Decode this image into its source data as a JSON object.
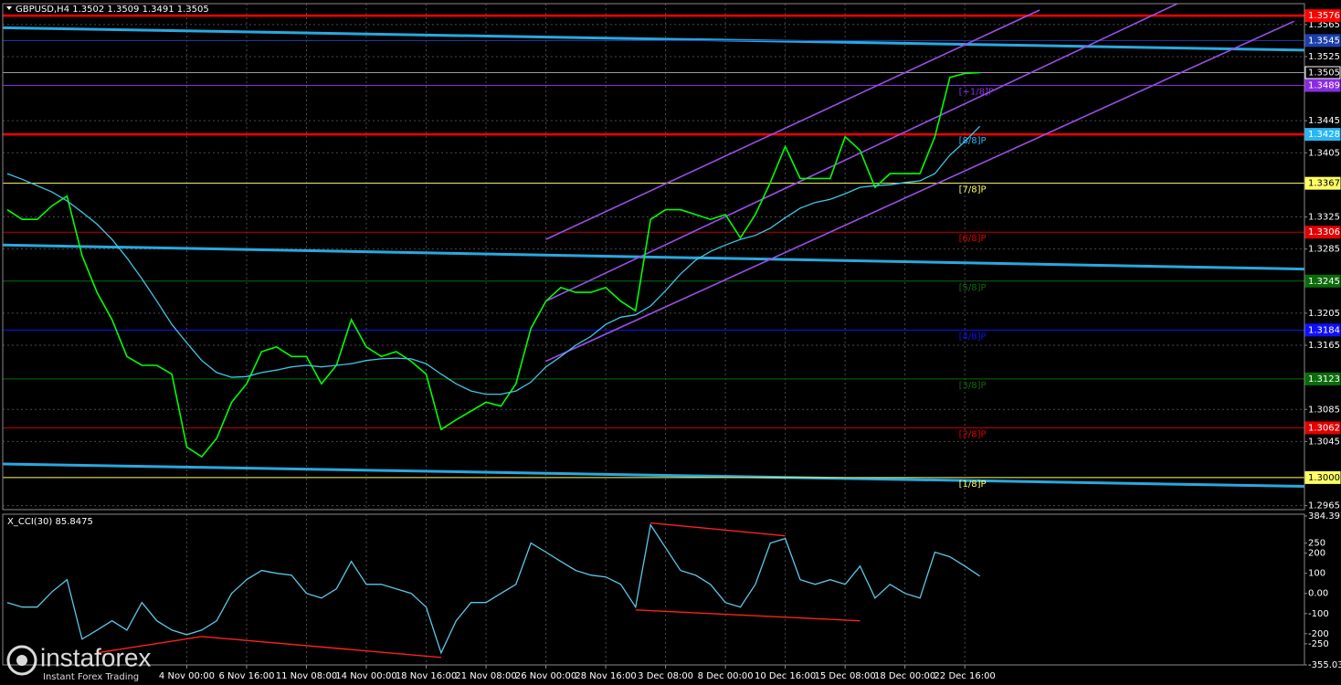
{
  "chart_data": [
    {
      "type": "line",
      "title": "GBPUSD,H4  1.3502 1.3509 1.3491 1.3505",
      "categories": [
        null,
        null,
        null,
        null,
        null,
        null,
        null,
        null,
        null,
        null,
        null,
        null,
        "4 Nov 00:00",
        null,
        null,
        null,
        "6 Nov 16:00",
        null,
        null,
        null,
        "11 Nov 08:00",
        null,
        null,
        null,
        "14 Nov 00:00",
        null,
        null,
        null,
        "18 Nov 16:00",
        null,
        null,
        null,
        "21 Nov 08:00",
        null,
        null,
        null,
        "26 Nov 00:00",
        null,
        null,
        null,
        "28 Nov 16:00",
        null,
        null,
        null,
        "3 Dec 08:00",
        null,
        null,
        null,
        "8 Dec 00:00",
        null,
        null,
        null,
        "10 Dec 16:00",
        null,
        null,
        null,
        "15 Dec 08:00",
        null,
        null,
        null,
        "18 Dec 00:00",
        null,
        null,
        null,
        "22 Dec 16:00",
        null
      ],
      "series": [
        {
          "color": "#00ff00",
          "values": [
            1.3334,
            1.3322,
            1.3322,
            1.3339,
            1.3351,
            1.3277,
            1.3231,
            1.3197,
            1.3151,
            1.314,
            1.314,
            1.3129,
            1.3038,
            1.3026,
            1.3049,
            1.3094,
            1.3117,
            1.3157,
            1.3163,
            1.3151,
            1.3151,
            1.3117,
            1.314,
            1.3197,
            1.3163,
            1.3151,
            1.3157,
            1.3145,
            1.3129,
            1.306,
            1.3072,
            1.3083,
            1.3094,
            1.3089,
            1.3117,
            1.3186,
            1.322,
            1.3237,
            1.3231,
            1.3231,
            1.3237,
            1.322,
            1.3208,
            1.3322,
            1.3334,
            1.3334,
            1.3328,
            1.3322,
            1.3328,
            1.3299,
            1.3328,
            1.3368,
            1.3413,
            1.3373,
            1.3373,
            1.3373,
            1.3425,
            1.3408,
            1.3362,
            1.3379,
            1.3379,
            1.3379,
            1.3425,
            1.3499,
            1.3504,
            1.3505
          ]
        },
        {
          "color": "#3fc6e8",
          "values": [
            1.3379,
            1.3372,
            1.3364,
            1.3356,
            1.3345,
            1.3331,
            1.3316,
            1.3297,
            1.3274,
            1.3248,
            1.322,
            1.3191,
            1.3168,
            1.3146,
            1.3131,
            1.3125,
            1.3126,
            1.3131,
            1.3134,
            1.3138,
            1.314,
            1.3138,
            1.314,
            1.3142,
            1.3146,
            1.3148,
            1.3149,
            1.3148,
            1.3142,
            1.3129,
            1.3117,
            1.3108,
            1.3104,
            1.3104,
            1.3108,
            1.3119,
            1.3138,
            1.3151,
            1.3165,
            1.3176,
            1.3191,
            1.32,
            1.3203,
            1.3214,
            1.3233,
            1.3254,
            1.3271,
            1.3282,
            1.329,
            1.3297,
            1.3302,
            1.3311,
            1.3324,
            1.3336,
            1.3343,
            1.3347,
            1.3354,
            1.3362,
            1.3364,
            1.3365,
            1.3368,
            1.337,
            1.3379,
            1.3402,
            1.3419,
            1.3438
          ]
        }
      ],
      "ylim": [
        1.296,
        1.3591
      ],
      "yticks": [
        1.3565,
        1.3525,
        1.3445,
        1.3405,
        1.3325,
        1.3285,
        1.3205,
        1.3165,
        1.3085,
        1.3045,
        1.2965
      ],
      "grid": true,
      "trend_lines": [
        {
          "color": "#29a8e0",
          "start": 1.3561,
          "end": 1.3533
        },
        {
          "color": "#29a8e0",
          "start": 1.329,
          "end": 1.326
        },
        {
          "color": "#29a8e0",
          "start": 1.3017,
          "end": 1.2989
        }
      ],
      "channel_lines": [
        {
          "color": "#9a4fe6",
          "from": [
            36,
            1.3297
          ],
          "to": [
            69,
            1.3583
          ]
        },
        {
          "color": "#9a4fe6",
          "from": [
            36,
            1.322
          ],
          "to": [
            79,
            1.3598
          ]
        },
        {
          "color": "#9a4fe6",
          "from": [
            36,
            1.3145
          ],
          "to": [
            86,
            1.3569
          ]
        }
      ],
      "levels": [
        {
          "price": 1.3576,
          "color": "#ff0000",
          "text_color": "#ffffff",
          "line_color": "#ff0000",
          "thick": true
        },
        {
          "price": 1.3545,
          "color": "#1c3faa",
          "text_color": "#ffffff",
          "line_color": "#1c3faa",
          "thick": false
        },
        {
          "price": 1.3505,
          "color": "#000000",
          "text_color": "#ffffff",
          "line_color": "#9a9a9a",
          "thick": false
        },
        {
          "price": 1.3489,
          "color": "#8a2be2",
          "text_color": "#ffffff",
          "line_color": "#8a2be2",
          "thick": false,
          "tag": "[+1/8]P"
        },
        {
          "price": 1.3428,
          "color": "#29b6f6",
          "text_color": "#ffffff",
          "line_color": "#ff0000",
          "thick": true,
          "tag": "[8/8]P"
        },
        {
          "price": 1.3367,
          "color": "#ffff66",
          "text_color": "#000000",
          "line_color": "#ffff66",
          "thick": false,
          "tag": "[7/8]P"
        },
        {
          "price": 1.3306,
          "color": "#e00000",
          "text_color": "#ffffff",
          "line_color": "#c00000",
          "thick": false,
          "tag": "[6/8]P"
        },
        {
          "price": 1.3245,
          "color": "#0b6b0b",
          "text_color": "#ffffff",
          "line_color": "#0b6b0b",
          "thick": false,
          "tag": "[5/8]P"
        },
        {
          "price": 1.3184,
          "color": "#1010ff",
          "text_color": "#ffffff",
          "line_color": "#1010ff",
          "thick": false,
          "tag": "[4/8]P"
        },
        {
          "price": 1.3123,
          "color": "#0b6b0b",
          "text_color": "#ffffff",
          "line_color": "#0b6b0b",
          "thick": false,
          "tag": "[3/8]P"
        },
        {
          "price": 1.3062,
          "color": "#e00000",
          "text_color": "#ffffff",
          "line_color": "#c00000",
          "thick": false,
          "tag": "[2/8]P"
        },
        {
          "price": {
            "value": 1.3,
            "label": "1.3000"
          },
          "color": "#ffff66",
          "text_color": "#000000",
          "line_color": "#ffff66",
          "thick": false,
          "tag": "[1/8]P"
        }
      ]
    },
    {
      "type": "line",
      "title": "X_CCI(30) 85.8475",
      "series": [
        {
          "color": "#5bc8e6",
          "values": [
            -45,
            -68,
            -68,
            9,
            68,
            -227,
            -182,
            -136,
            -182,
            -45,
            -136,
            -182,
            -205,
            -182,
            -136,
            0,
            68,
            114,
            100,
            91,
            0,
            -23,
            23,
            159,
            45,
            45,
            23,
            0,
            -68,
            -295,
            -136,
            -45,
            -45,
            0,
            45,
            250,
            205,
            159,
            114,
            91,
            82,
            45,
            -68,
            341,
            227,
            114,
            91,
            45,
            -45,
            -68,
            45,
            250,
            273,
            68,
            45,
            68,
            45,
            136,
            -23,
            45,
            0,
            -23,
            205,
            182,
            136,
            85.8475
          ]
        }
      ],
      "ylim": [
        -355.0347,
        384.3971
      ],
      "yticks": [
        384.3971,
        250,
        200,
        100,
        {
          "value": 0,
          "label": "0.00"
        },
        -100,
        -200,
        -250,
        -355.0347
      ],
      "annotation_lines": [
        {
          "color": "#ff2020",
          "from": [
            43,
            350
          ],
          "to": [
            52,
            286
          ]
        },
        {
          "color": "#ff2020",
          "from": [
            42,
            -82
          ],
          "to": [
            57,
            -136
          ]
        },
        {
          "color": "#ff2020",
          "from": [
            6,
            -295
          ],
          "to": [
            13,
            -214
          ]
        },
        {
          "color": "#ff2020",
          "from": [
            13,
            -214
          ],
          "to": [
            29,
            -318
          ]
        }
      ]
    }
  ],
  "watermark": {
    "brand": "instaforex",
    "tagline": "Instant Forex Trading"
  }
}
